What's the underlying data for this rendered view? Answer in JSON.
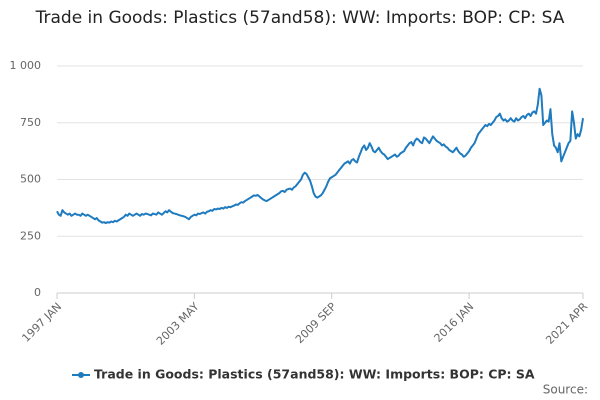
{
  "chart_data": {
    "type": "line",
    "title": "Trade in Goods: Plastics (57and58): WW: Imports: BOP: CP: SA",
    "source": "Source:",
    "categories": [
      "1997 JAN",
      null,
      null,
      null,
      null,
      null,
      null,
      null,
      null,
      null,
      null,
      null,
      null,
      null,
      null,
      null,
      null,
      null,
      null,
      null,
      null,
      null,
      null,
      null,
      null,
      null,
      null,
      null,
      null,
      null,
      null,
      null,
      null,
      null,
      null,
      null,
      null,
      null,
      null,
      null,
      null,
      null,
      null,
      null,
      null,
      null,
      null,
      null,
      null,
      null,
      null,
      null,
      null,
      null,
      null,
      null,
      null,
      null,
      null,
      null,
      null,
      null,
      null,
      null,
      null,
      null,
      null,
      null,
      null,
      null,
      null,
      null,
      null,
      null,
      null,
      null,
      "2003 MAY",
      null,
      null,
      null,
      null,
      null,
      null,
      null,
      null,
      null,
      null,
      null,
      null,
      null,
      null,
      null,
      null,
      null,
      null,
      null,
      null,
      null,
      null,
      null,
      null,
      null,
      null,
      null,
      null,
      null,
      null,
      null,
      null,
      null,
      null,
      null,
      null,
      null,
      null,
      null,
      null,
      null,
      null,
      null,
      null,
      null,
      null,
      null,
      null,
      null,
      null,
      null,
      null,
      null,
      null,
      null,
      null,
      null,
      null,
      null,
      null,
      null,
      null,
      null,
      null,
      null,
      null,
      null,
      null,
      null,
      null,
      null,
      null,
      null,
      null,
      null,
      "2009 SEP",
      null,
      null,
      null,
      null,
      null,
      null,
      null,
      null,
      null,
      null,
      null,
      null,
      null,
      null,
      null,
      null,
      null,
      null,
      null,
      null,
      null,
      null,
      null,
      null,
      null,
      null,
      null,
      null,
      null,
      null,
      null,
      null,
      null,
      null,
      null,
      null,
      null,
      null,
      null,
      null,
      null,
      null,
      null,
      null,
      null,
      null,
      null,
      null,
      null,
      null,
      null,
      null,
      null,
      null,
      null,
      null,
      null,
      null,
      null,
      null,
      null,
      null,
      null,
      null,
      null,
      null,
      null,
      null,
      null,
      null,
      null,
      null,
      null,
      null,
      null,
      "2016 JAN",
      null,
      null,
      null,
      null,
      null,
      null,
      null,
      null,
      null,
      null,
      null,
      null,
      null,
      null,
      null,
      null,
      null,
      null,
      null,
      null,
      null,
      null,
      null,
      null,
      null,
      null,
      null,
      null,
      null,
      null,
      null,
      null,
      null,
      null,
      null,
      null,
      null,
      null,
      null,
      null,
      null,
      null,
      null,
      null,
      null,
      null,
      null,
      null,
      null,
      null,
      null,
      null,
      null,
      null,
      null,
      null,
      null,
      null,
      null,
      null,
      null,
      null,
      "2021 APR"
    ],
    "series": [
      {
        "name": "Trade in Goods: Plastics (57and58): WW: Imports: BOP: CP: SA",
        "color": "#1f7bbf",
        "values": [
          360,
          345,
          340,
          365,
          355,
          350,
          345,
          350,
          340,
          345,
          350,
          345,
          345,
          340,
          350,
          345,
          340,
          345,
          340,
          335,
          330,
          325,
          330,
          320,
          315,
          310,
          312,
          308,
          312,
          310,
          315,
          312,
          318,
          315,
          320,
          325,
          330,
          335,
          345,
          340,
          350,
          345,
          340,
          345,
          350,
          345,
          340,
          348,
          345,
          350,
          348,
          345,
          342,
          350,
          348,
          345,
          355,
          350,
          345,
          352,
          360,
          355,
          365,
          358,
          352,
          350,
          348,
          345,
          342,
          340,
          338,
          335,
          330,
          325,
          335,
          340,
          345,
          342,
          350,
          348,
          352,
          355,
          350,
          358,
          360,
          365,
          362,
          370,
          368,
          372,
          370,
          375,
          372,
          378,
          375,
          380,
          378,
          382,
          385,
          390,
          388,
          395,
          400,
          398,
          405,
          410,
          415,
          420,
          425,
          430,
          428,
          432,
          425,
          418,
          412,
          408,
          405,
          410,
          415,
          420,
          425,
          430,
          435,
          440,
          448,
          450,
          445,
          455,
          458,
          460,
          455,
          465,
          470,
          480,
          490,
          500,
          520,
          530,
          525,
          510,
          495,
          470,
          440,
          425,
          420,
          425,
          430,
          440,
          455,
          470,
          490,
          505,
          510,
          515,
          520,
          530,
          540,
          550,
          560,
          570,
          575,
          580,
          570,
          585,
          590,
          580,
          575,
          600,
          620,
          640,
          650,
          630,
          640,
          660,
          645,
          625,
          620,
          630,
          640,
          625,
          615,
          610,
          600,
          590,
          595,
          600,
          605,
          610,
          600,
          605,
          615,
          620,
          625,
          640,
          650,
          660,
          665,
          650,
          670,
          680,
          675,
          665,
          660,
          685,
          680,
          670,
          660,
          675,
          690,
          680,
          670,
          665,
          660,
          650,
          655,
          645,
          640,
          630,
          625,
          620,
          630,
          640,
          625,
          615,
          610,
          600,
          605,
          615,
          625,
          640,
          650,
          660,
          680,
          700,
          710,
          720,
          730,
          740,
          735,
          745,
          740,
          750,
          760,
          775,
          780,
          790,
          770,
          760,
          765,
          755,
          760,
          770,
          760,
          755,
          770,
          760,
          765,
          775,
          780,
          770,
          785,
          790,
          780,
          795,
          800,
          790,
          830,
          900,
          870,
          740,
          750,
          760,
          755,
          810,
          700,
          650,
          640,
          620,
          660,
          580,
          600,
          620,
          640,
          660,
          670,
          800,
          750,
          680,
          700,
          690,
          720,
          770
        ]
      }
    ],
    "ylim": [
      0,
      1000
    ],
    "yticks": [
      0,
      250,
      500,
      750,
      {
        "value": 1000,
        "label": "1 000"
      }
    ],
    "grid": true
  }
}
